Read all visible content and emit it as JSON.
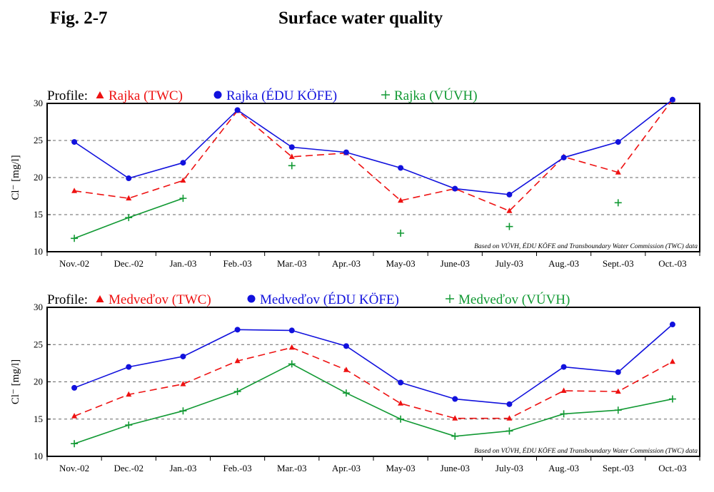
{
  "figure": {
    "label": "Fig. 2-7",
    "title": "Surface water quality"
  },
  "colors": {
    "twc": "#ee1111",
    "edu": "#1111dd",
    "vuvh": "#119933",
    "grid": "#666666",
    "axis": "#000000"
  },
  "chart_data": [
    {
      "type": "line",
      "legend_prefix": "Profile:",
      "ylabel": "Cl⁻ [mg/l]",
      "ylim": [
        10,
        30
      ],
      "yticks": [
        10,
        15,
        20,
        25,
        30
      ],
      "grid": "dashed horizontal at 15, 20, 25",
      "categories": [
        "Nov.-02",
        "Dec.-02",
        "Jan.-03",
        "Feb.-03",
        "Mar.-03",
        "Apr.-03",
        "May-03",
        "June-03",
        "July-03",
        "Aug.-03",
        "Sept.-03",
        "Oct.-03"
      ],
      "note": "Based on VÚVH, ÉDU KÖFE and Transboundary Water Commission (TWC) data",
      "series": [
        {
          "name": "Rajka (TWC)",
          "marker": "triangle",
          "line": "dashed",
          "color": "#ee1111",
          "values": [
            18.2,
            17.2,
            19.6,
            29.0,
            22.8,
            23.3,
            16.9,
            18.5,
            15.5,
            22.8,
            20.7,
            30.5
          ]
        },
        {
          "name": "Rajka (ÉDU KÖFE)",
          "marker": "circle",
          "line": "solid",
          "color": "#1111dd",
          "values": [
            24.8,
            19.9,
            22.0,
            29.1,
            24.1,
            23.4,
            21.3,
            18.5,
            17.7,
            22.7,
            24.8,
            30.5
          ]
        },
        {
          "name": "Rajka (VÚVH)",
          "marker": "plus",
          "line": "solid",
          "color": "#119933",
          "values": [
            11.8,
            14.6,
            17.2,
            null,
            21.6,
            null,
            12.5,
            null,
            13.4,
            null,
            16.6,
            null
          ],
          "connected_segments": [
            [
              0,
              2
            ]
          ]
        }
      ]
    },
    {
      "type": "line",
      "legend_prefix": "Profile:",
      "ylabel": "Cl⁻ [mg/l]",
      "ylim": [
        10,
        30
      ],
      "yticks": [
        10,
        15,
        20,
        25,
        30
      ],
      "grid": "dashed horizontal at 15, 20, 25",
      "categories": [
        "Nov.-02",
        "Dec.-02",
        "Jan.-03",
        "Feb.-03",
        "Mar.-03",
        "Apr.-03",
        "May-03",
        "June-03",
        "July-03",
        "Aug.-03",
        "Sept.-03",
        "Oct.-03"
      ],
      "note": "Based on VÚVH, ÉDU KÖFE and Transboundary Water Commission (TWC) data",
      "series": [
        {
          "name": "Medveďov (TWC)",
          "marker": "triangle",
          "line": "dashed",
          "color": "#ee1111",
          "values": [
            15.4,
            18.3,
            19.7,
            22.8,
            24.6,
            21.6,
            17.1,
            15.1,
            15.1,
            18.8,
            18.7,
            22.7
          ]
        },
        {
          "name": "Medveďov (ÉDU KÖFE)",
          "marker": "circle",
          "line": "solid",
          "color": "#1111dd",
          "values": [
            19.2,
            22.0,
            23.4,
            27.0,
            26.9,
            24.8,
            19.9,
            17.7,
            17.0,
            22.0,
            21.3,
            27.7
          ]
        },
        {
          "name": "Medveďov (VÚVH)",
          "marker": "plus",
          "line": "solid",
          "color": "#119933",
          "values": [
            11.7,
            14.2,
            16.1,
            18.7,
            22.4,
            18.5,
            15.0,
            12.7,
            13.4,
            15.7,
            16.2,
            17.7
          ]
        }
      ]
    }
  ]
}
